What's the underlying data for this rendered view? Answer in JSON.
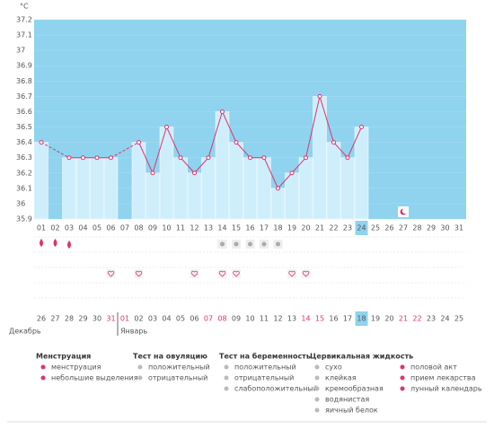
{
  "chart_data": {
    "type": "line",
    "unit": "°C",
    "categories": [
      "01",
      "02",
      "03",
      "04",
      "05",
      "06",
      "07",
      "08",
      "09",
      "10",
      "11",
      "12",
      "13",
      "14",
      "15",
      "16",
      "17",
      "18",
      "19",
      "20",
      "21",
      "22",
      "23",
      "24",
      "25",
      "26",
      "27",
      "28",
      "29",
      "30",
      "31"
    ],
    "values": [
      36.4,
      null,
      36.3,
      36.3,
      36.3,
      36.3,
      null,
      36.4,
      36.2,
      36.5,
      36.3,
      36.2,
      36.3,
      36.6,
      36.4,
      36.3,
      36.3,
      36.1,
      36.2,
      36.3,
      36.7,
      36.4,
      36.3,
      36.5,
      null,
      null,
      null,
      null,
      null,
      null,
      null
    ],
    "color": "#e0336b",
    "bar_color": "#cfeefc",
    "background": "#8fd3ef",
    "ylim": [
      35.9,
      37.2
    ],
    "yticks": [
      35.9,
      36,
      36.1,
      36.2,
      36.3,
      36.4,
      36.5,
      36.6,
      36.7,
      36.8,
      36.9,
      37,
      37.1,
      37.2
    ],
    "dates": [
      "26",
      "27",
      "28",
      "29",
      "30",
      "31",
      "01",
      "02",
      "03",
      "04",
      "05",
      "06",
      "07",
      "08",
      "09",
      "10",
      "11",
      "12",
      "13",
      "14",
      "15",
      "16",
      "17",
      "18",
      "19",
      "20",
      "21",
      "22",
      "23",
      "24",
      "25"
    ],
    "months": [
      "Декабрь",
      "Январь"
    ]
  },
  "legend": [
    {
      "title": "Менструация",
      "items": [
        "менструация",
        "небольшие выделения"
      ]
    },
    {
      "title": "Тест на овуляцию",
      "items": [
        "положительный",
        "отрицательный"
      ]
    },
    {
      "title": "Тест на беременность",
      "items": [
        "положительный",
        "отрицательный",
        "слабоположительный"
      ]
    },
    {
      "title": "Цервикальная жидкость",
      "items": [
        "сухо",
        "клейкая",
        "кремообразная",
        "водянистая",
        "яичный белок"
      ]
    },
    {
      "title": "",
      "items": [
        "половой акт",
        "прием лекарства",
        "лунный календарь"
      ]
    }
  ]
}
